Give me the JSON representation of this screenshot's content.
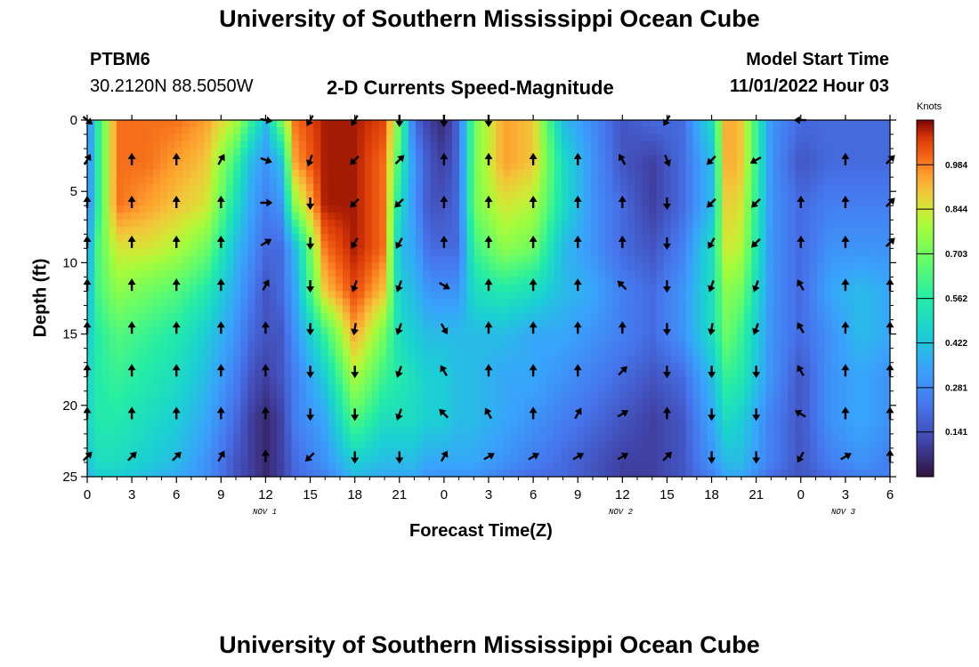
{
  "header": {
    "title": "University of Southern Mississippi Ocean Cube",
    "station": "PTBM6",
    "coords": "30.2120N  88.5050W",
    "subtitle": "2-D Currents Speed-Magnitude",
    "model_label": "Model Start Time",
    "model_time": "11/01/2022 Hour 03"
  },
  "footer": {
    "title": "University of Southern Mississippi Ocean Cube"
  },
  "chart_data": {
    "type": "heatmap",
    "title": "2-D Currents Speed-Magnitude",
    "xlabel": "Forecast Time(Z)",
    "ylabel": "Depth (ft)",
    "x_range": [
      0,
      54
    ],
    "ylim": [
      0,
      25
    ],
    "y_inverted": true,
    "x_ticks": [
      "0",
      "3",
      "6",
      "9",
      "12",
      "15",
      "18",
      "21",
      "0",
      "3",
      "6",
      "9",
      "12",
      "15",
      "18",
      "21",
      "0",
      "3",
      "6"
    ],
    "y_ticks": [
      "0",
      "5",
      "10",
      "15",
      "20",
      "25"
    ],
    "date_labels": [
      "NOV 1",
      "NOV 2",
      "NOV 3"
    ],
    "colorbar": {
      "unit": "Knots",
      "ticks": [
        "0.984",
        "0.844",
        "0.703",
        "0.562",
        "0.422",
        "0.281",
        "0.141"
      ],
      "range": [
        0.0,
        1.125
      ]
    },
    "speed_profile": {
      "depths_ft": [
        0,
        3,
        6,
        9,
        12,
        15,
        18,
        21,
        24,
        25
      ],
      "times": [
        0,
        0.5,
        2,
        4,
        6,
        8,
        10,
        11,
        12,
        13,
        14,
        16,
        18,
        20,
        21,
        22,
        23,
        24,
        25,
        26,
        28,
        30,
        32,
        34,
        36,
        38,
        40,
        42,
        43,
        44,
        46,
        48,
        50,
        52,
        54
      ],
      "speeds_kn": [
        [
          0.2,
          0.5,
          1.0,
          1.0,
          1.0,
          0.95,
          0.8,
          0.6,
          0.4,
          0.7,
          1.0,
          1.1,
          1.1,
          1.05,
          0.7,
          0.2,
          0.1,
          0.05,
          0.2,
          0.7,
          0.95,
          0.9,
          0.4,
          0.28,
          0.15,
          0.2,
          0.2,
          0.5,
          0.95,
          0.9,
          0.3,
          0.2,
          0.2,
          0.2,
          0.2
        ],
        [
          0.2,
          0.5,
          1.0,
          1.0,
          0.95,
          0.9,
          0.6,
          0.4,
          0.3,
          0.4,
          0.95,
          1.1,
          1.1,
          1.0,
          0.6,
          0.3,
          0.15,
          0.1,
          0.2,
          0.7,
          0.95,
          0.9,
          0.5,
          0.3,
          0.15,
          0.1,
          0.2,
          0.4,
          0.95,
          0.9,
          0.3,
          0.15,
          0.2,
          0.2,
          0.2
        ],
        [
          0.2,
          0.5,
          1.0,
          0.95,
          0.9,
          0.85,
          0.5,
          0.35,
          0.25,
          0.3,
          0.75,
          1.1,
          1.1,
          1.0,
          0.5,
          0.3,
          0.15,
          0.15,
          0.2,
          0.7,
          0.85,
          0.8,
          0.5,
          0.3,
          0.2,
          0.1,
          0.2,
          0.4,
          0.9,
          0.85,
          0.3,
          0.2,
          0.25,
          0.25,
          0.25
        ],
        [
          0.25,
          0.6,
          0.85,
          0.85,
          0.8,
          0.7,
          0.4,
          0.3,
          0.2,
          0.2,
          0.4,
          1.0,
          1.1,
          1.0,
          0.4,
          0.35,
          0.2,
          0.2,
          0.2,
          0.6,
          0.75,
          0.7,
          0.4,
          0.3,
          0.2,
          0.15,
          0.25,
          0.5,
          0.85,
          0.8,
          0.3,
          0.2,
          0.3,
          0.3,
          0.3
        ],
        [
          0.3,
          0.6,
          0.75,
          0.7,
          0.65,
          0.55,
          0.35,
          0.25,
          0.15,
          0.2,
          0.35,
          0.9,
          1.05,
          0.9,
          0.45,
          0.4,
          0.3,
          0.3,
          0.3,
          0.5,
          0.55,
          0.5,
          0.4,
          0.35,
          0.25,
          0.2,
          0.3,
          0.5,
          0.75,
          0.7,
          0.3,
          0.2,
          0.35,
          0.4,
          0.35
        ],
        [
          0.4,
          0.55,
          0.65,
          0.6,
          0.55,
          0.45,
          0.3,
          0.2,
          0.15,
          0.15,
          0.3,
          0.6,
          0.95,
          0.7,
          0.5,
          0.45,
          0.4,
          0.4,
          0.4,
          0.4,
          0.4,
          0.35,
          0.35,
          0.3,
          0.25,
          0.2,
          0.3,
          0.5,
          0.7,
          0.6,
          0.3,
          0.2,
          0.3,
          0.4,
          0.35
        ],
        [
          0.45,
          0.55,
          0.6,
          0.55,
          0.5,
          0.4,
          0.25,
          0.15,
          0.1,
          0.15,
          0.25,
          0.45,
          0.8,
          0.6,
          0.55,
          0.5,
          0.45,
          0.45,
          0.4,
          0.4,
          0.35,
          0.35,
          0.3,
          0.25,
          0.2,
          0.15,
          0.2,
          0.4,
          0.6,
          0.55,
          0.3,
          0.15,
          0.3,
          0.35,
          0.3
        ],
        [
          0.45,
          0.55,
          0.55,
          0.5,
          0.45,
          0.35,
          0.2,
          0.1,
          0.05,
          0.1,
          0.25,
          0.35,
          0.65,
          0.5,
          0.5,
          0.5,
          0.45,
          0.45,
          0.4,
          0.4,
          0.35,
          0.3,
          0.25,
          0.2,
          0.15,
          0.1,
          0.15,
          0.35,
          0.5,
          0.45,
          0.25,
          0.15,
          0.3,
          0.35,
          0.3
        ],
        [
          0.4,
          0.5,
          0.5,
          0.45,
          0.4,
          0.3,
          0.15,
          0.1,
          0.05,
          0.1,
          0.2,
          0.3,
          0.45,
          0.4,
          0.4,
          0.4,
          0.35,
          0.35,
          0.35,
          0.35,
          0.3,
          0.25,
          0.2,
          0.15,
          0.1,
          0.1,
          0.15,
          0.3,
          0.4,
          0.4,
          0.25,
          0.15,
          0.25,
          0.3,
          0.25
        ],
        [
          0.35,
          0.45,
          0.45,
          0.4,
          0.35,
          0.3,
          0.15,
          0.1,
          0.05,
          0.1,
          0.2,
          0.25,
          0.4,
          0.35,
          0.35,
          0.35,
          0.3,
          0.3,
          0.3,
          0.3,
          0.25,
          0.2,
          0.2,
          0.15,
          0.1,
          0.1,
          0.15,
          0.25,
          0.35,
          0.35,
          0.2,
          0.15,
          0.2,
          0.25,
          0.25
        ]
      ]
    },
    "vectors": {
      "times": [
        0,
        3,
        6,
        9,
        12,
        15,
        18,
        21,
        24,
        27,
        30,
        33,
        36,
        39,
        42,
        45,
        48,
        51,
        54
      ],
      "depths_ft": [
        0,
        2.8,
        5.8,
        8.6,
        11.6,
        14.6,
        17.6,
        20.6,
        23.6
      ],
      "directions_deg": [
        [
          130,
          null,
          null,
          null,
          100,
          210,
          210,
          180,
          180,
          180,
          null,
          null,
          null,
          210,
          null,
          null,
          270,
          null,
          null
        ],
        [
          30,
          0,
          0,
          30,
          110,
          200,
          225,
          45,
          0,
          0,
          0,
          0,
          330,
          160,
          225,
          240,
          null,
          0,
          45
        ],
        [
          0,
          0,
          0,
          0,
          90,
          180,
          225,
          225,
          0,
          0,
          0,
          0,
          0,
          180,
          225,
          225,
          0,
          0,
          45
        ],
        [
          0,
          0,
          0,
          0,
          60,
          180,
          210,
          210,
          0,
          0,
          0,
          0,
          0,
          180,
          210,
          225,
          0,
          0,
          45
        ],
        [
          0,
          0,
          0,
          0,
          30,
          180,
          200,
          200,
          120,
          0,
          0,
          0,
          315,
          180,
          200,
          200,
          330,
          0,
          0
        ],
        [
          0,
          0,
          0,
          0,
          0,
          180,
          190,
          200,
          150,
          0,
          0,
          0,
          0,
          180,
          190,
          200,
          330,
          0,
          0
        ],
        [
          0,
          0,
          0,
          0,
          0,
          180,
          180,
          200,
          330,
          0,
          0,
          0,
          45,
          180,
          180,
          180,
          330,
          0,
          0
        ],
        [
          0,
          0,
          0,
          0,
          0,
          180,
          180,
          200,
          315,
          330,
          0,
          30,
          60,
          0,
          180,
          180,
          300,
          0,
          0
        ],
        [
          45,
          45,
          45,
          30,
          0,
          225,
          180,
          180,
          30,
          60,
          60,
          60,
          60,
          45,
          180,
          180,
          210,
          60,
          0
        ]
      ]
    }
  }
}
